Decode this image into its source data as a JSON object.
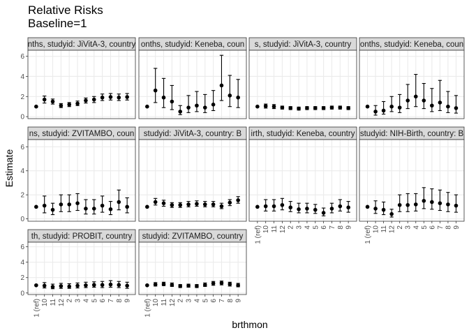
{
  "figure": {
    "title_line1": "Relative Risks",
    "title_line2": "Baseline=1",
    "xlabel": "brthmon",
    "ylabel": "Estimate"
  },
  "chart_data": {
    "type": "scatter",
    "geometry": "point-with-errorbars",
    "categories": [
      "1 (ref)",
      "10",
      "11",
      "12",
      "2",
      "3",
      "4",
      "5",
      "6",
      "7",
      "8",
      "9"
    ],
    "ylim": [
      -0.2,
      6.6
    ],
    "yticks": [
      0,
      2,
      4,
      6
    ],
    "grid": true,
    "legend": "none",
    "color": "#000000",
    "panels": [
      {
        "strip": "nths, studyid: JiVitA-3, country",
        "est": [
          1,
          1.7,
          1.5,
          1.1,
          1.2,
          1.3,
          1.6,
          1.7,
          1.9,
          1.95,
          1.9,
          1.95
        ],
        "lo": [
          1,
          1.35,
          1.25,
          0.9,
          1.0,
          1.1,
          1.35,
          1.4,
          1.6,
          1.65,
          1.6,
          1.65
        ],
        "hi": [
          1,
          2.05,
          1.75,
          1.3,
          1.4,
          1.55,
          1.85,
          2.0,
          2.25,
          2.3,
          2.25,
          2.3
        ]
      },
      {
        "strip": "onths, studyid: Keneba, coun",
        "est": [
          1,
          2.6,
          1.9,
          1.5,
          0.5,
          0.9,
          1.1,
          0.9,
          1.2,
          3.1,
          2.1,
          1.9
        ],
        "lo": [
          1,
          1.4,
          0.9,
          0.7,
          0.2,
          0.4,
          0.5,
          0.4,
          0.6,
          1.6,
          1.0,
          0.9
        ],
        "hi": [
          1,
          4.8,
          3.8,
          3.1,
          1.1,
          2.1,
          2.5,
          2.2,
          2.6,
          6.1,
          4.1,
          3.7
        ]
      },
      {
        "strip": "s, studyid: JiVitA-3, country",
        "est": [
          1,
          1.05,
          1.0,
          0.9,
          0.85,
          0.8,
          0.85,
          0.85,
          0.85,
          0.9,
          0.9,
          0.85
        ],
        "lo": [
          1,
          0.85,
          0.8,
          0.75,
          0.7,
          0.65,
          0.7,
          0.7,
          0.7,
          0.75,
          0.75,
          0.7
        ],
        "hi": [
          1,
          1.25,
          1.2,
          1.05,
          1.0,
          0.95,
          1.0,
          1.0,
          1.0,
          1.05,
          1.05,
          1.0
        ]
      },
      {
        "strip": "onths, studyid: Keneba, coun",
        "est": [
          1,
          0.5,
          0.6,
          1.0,
          0.9,
          1.6,
          2.0,
          1.6,
          1.1,
          1.4,
          1.0,
          0.85
        ],
        "lo": [
          1,
          0.15,
          0.25,
          0.5,
          0.4,
          0.8,
          1.0,
          0.8,
          0.5,
          0.6,
          0.4,
          0.35
        ],
        "hi": [
          1,
          1.1,
          1.5,
          2.0,
          2.2,
          3.2,
          4.2,
          3.3,
          2.8,
          3.6,
          2.5,
          2.1
        ]
      },
      {
        "strip": "ns, studyid: ZVITAMBO, coun",
        "est": [
          1,
          1.1,
          0.75,
          1.2,
          1.2,
          1.3,
          0.85,
          0.85,
          1.1,
          0.8,
          1.4,
          1.0
        ],
        "lo": [
          1,
          0.5,
          0.35,
          0.6,
          0.6,
          0.7,
          0.4,
          0.4,
          0.55,
          0.35,
          0.75,
          0.5
        ],
        "hi": [
          1,
          1.9,
          1.3,
          2.0,
          2.0,
          2.1,
          1.6,
          1.6,
          1.9,
          1.45,
          2.4,
          1.75
        ]
      },
      {
        "strip": "studyid: JiVitA-3, country: B",
        "est": [
          1,
          1.4,
          1.3,
          1.15,
          1.15,
          1.2,
          1.25,
          1.2,
          1.2,
          1.05,
          1.35,
          1.55
        ],
        "lo": [
          1,
          1.15,
          1.05,
          0.95,
          0.95,
          1.0,
          1.05,
          1.0,
          1.0,
          0.85,
          1.1,
          1.3
        ],
        "hi": [
          1,
          1.7,
          1.55,
          1.35,
          1.35,
          1.45,
          1.5,
          1.45,
          1.45,
          1.3,
          1.6,
          1.85
        ]
      },
      {
        "strip": "irth, studyid: Keneba, country",
        "est": [
          1,
          1.05,
          1.05,
          1.15,
          0.95,
          0.8,
          0.85,
          0.75,
          0.5,
          0.85,
          1.05,
          0.95
        ],
        "lo": [
          1,
          0.65,
          0.65,
          0.75,
          0.6,
          0.5,
          0.5,
          0.45,
          0.25,
          0.5,
          0.65,
          0.55
        ],
        "hi": [
          1,
          1.6,
          1.6,
          1.7,
          1.45,
          1.3,
          1.3,
          1.2,
          0.9,
          1.3,
          1.6,
          1.45
        ]
      },
      {
        "strip": "studyid: NIH-Birth, country: B",
        "est": [
          1,
          0.85,
          0.75,
          0.4,
          1.15,
          1.15,
          1.2,
          1.5,
          1.4,
          1.3,
          1.2,
          1.1
        ],
        "lo": [
          1,
          0.45,
          0.35,
          0.15,
          0.6,
          0.6,
          0.65,
          0.85,
          0.8,
          0.7,
          0.6,
          0.55
        ],
        "hi": [
          1,
          1.5,
          1.4,
          0.8,
          2.0,
          2.1,
          2.1,
          2.6,
          2.5,
          2.4,
          2.2,
          2.0
        ]
      },
      {
        "strip": "th, studyid: PROBIT, country",
        "est": [
          1,
          0.95,
          0.8,
          0.9,
          0.85,
          0.95,
          1.0,
          1.05,
          1.05,
          1.1,
          1.05,
          0.95
        ],
        "lo": [
          1,
          0.65,
          0.55,
          0.6,
          0.6,
          0.65,
          0.7,
          0.75,
          0.7,
          0.75,
          0.7,
          0.6
        ],
        "hi": [
          1,
          1.35,
          1.15,
          1.25,
          1.2,
          1.3,
          1.4,
          1.45,
          1.5,
          1.6,
          1.5,
          1.4
        ]
      },
      {
        "strip": "studyid: ZVITAMBO, country",
        "est": [
          1,
          1.1,
          1.15,
          1.05,
          0.9,
          0.95,
          0.9,
          1.05,
          1.25,
          1.3,
          1.15,
          1.0
        ],
        "lo": [
          1,
          0.9,
          0.95,
          0.85,
          0.7,
          0.75,
          0.7,
          0.85,
          1.0,
          1.05,
          0.9,
          0.8
        ],
        "hi": [
          1,
          1.35,
          1.4,
          1.3,
          1.1,
          1.15,
          1.1,
          1.3,
          1.5,
          1.55,
          1.4,
          1.25
        ]
      }
    ]
  }
}
